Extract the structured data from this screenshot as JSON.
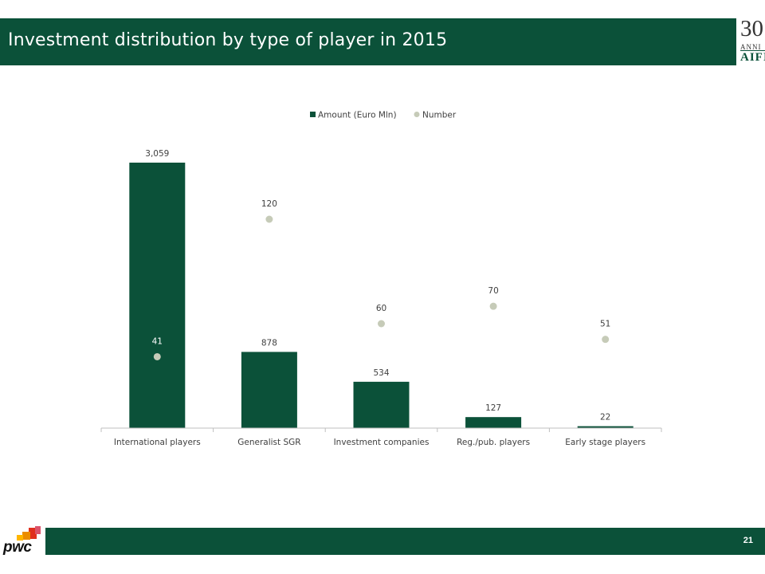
{
  "slide": {
    "title": "Investment distribution by type of player in 2015",
    "page_number": "21",
    "brand": "pwc",
    "aifi_logo": {
      "number": "30",
      "anni": "ANNI",
      "name": "AIFI"
    }
  },
  "colors": {
    "brand_green": "#0b5139",
    "number_marker": "#c6cbb8",
    "axis": "#bfbfbf",
    "text": "#404040"
  },
  "chart_data": {
    "type": "bar",
    "title": "",
    "xlabel": "",
    "ylabel": "",
    "legend_position": "top",
    "grid": false,
    "categories": [
      "International players",
      "Generalist SGR",
      "Investment companies",
      "Reg./pub. players",
      "Early stage players"
    ],
    "series": [
      {
        "name": "Amount (Euro Mln)",
        "type": "bar",
        "values": [
          3059,
          878,
          534,
          127,
          22
        ],
        "labels": [
          "3,059",
          "878",
          "534",
          "127",
          "22"
        ]
      },
      {
        "name": "Number",
        "type": "scatter",
        "values": [
          41,
          120,
          60,
          70,
          51
        ],
        "labels": [
          "41",
          "120",
          "60",
          "70",
          "51"
        ]
      }
    ],
    "ylim_primary": [
      0,
      3059
    ],
    "ylim_secondary": [
      0,
      120
    ]
  }
}
